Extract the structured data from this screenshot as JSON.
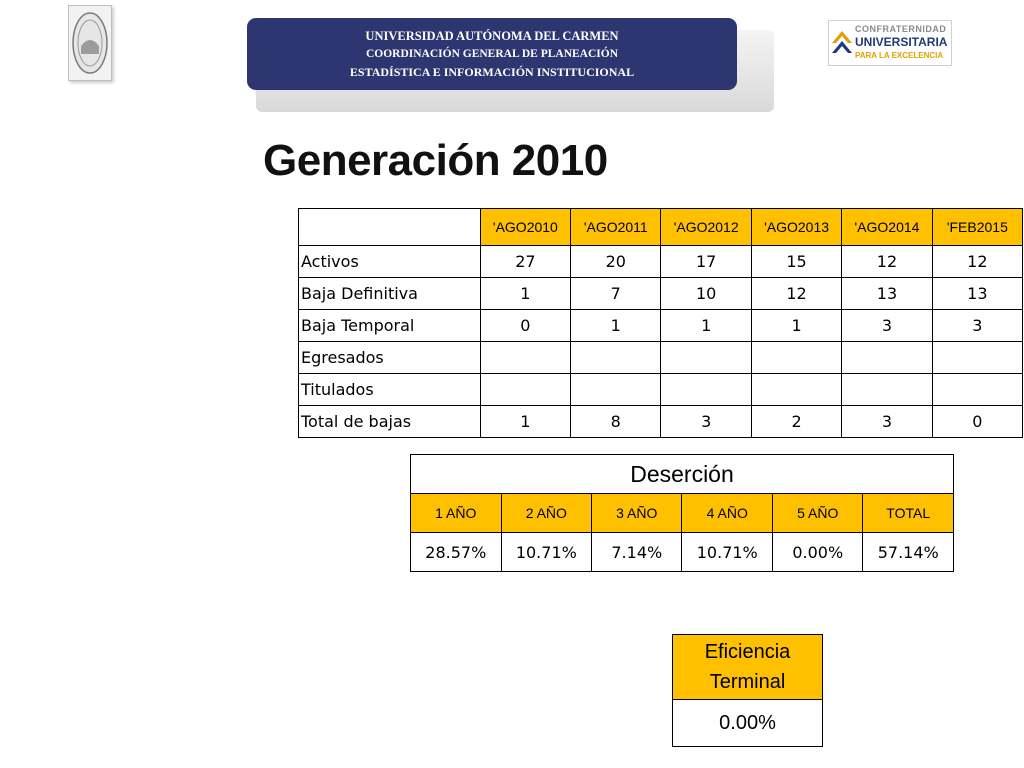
{
  "header": {
    "banner": {
      "line1": "UNIVERSIDAD AUTÓNOMA DEL CARMEN",
      "line2": "COORDINACIÓN GENERAL DE PLANEACIÓN",
      "line3": "ESTADÍSTICA E INFORMACIÓN INSTITUCIONAL"
    },
    "right_logo": {
      "line1": "CONFRATERNIDAD",
      "line2": "UNIVERSITARIA",
      "line3": "PARA LA EXCELENCIA"
    },
    "accent_color": "#2e3672"
  },
  "title": "Generación 2010",
  "main_table": {
    "columns": [
      "'AGO2010",
      "'AGO2011",
      "'AGO2012",
      "'AGO2013",
      "'AGO2014",
      "'FEB2015"
    ],
    "rows": [
      {
        "label": "Activos",
        "values": [
          "27",
          "20",
          "17",
          "15",
          "12",
          "12"
        ]
      },
      {
        "label": "Baja Definitiva",
        "values": [
          "1",
          "7",
          "10",
          "12",
          "13",
          "13"
        ]
      },
      {
        "label": "Baja Temporal",
        "values": [
          "0",
          "1",
          "1",
          "1",
          "3",
          "3"
        ]
      },
      {
        "label": "Egresados",
        "values": [
          "",
          "",
          "",
          "",
          "",
          ""
        ]
      },
      {
        "label": "Titulados",
        "values": [
          "",
          "",
          "",
          "",
          "",
          ""
        ]
      },
      {
        "label": "Total de bajas",
        "values": [
          "1",
          "8",
          "3",
          "2",
          "3",
          "0"
        ]
      }
    ],
    "header_color": "#ffc000"
  },
  "desercion": {
    "caption": "Deserción",
    "columns": [
      "1 AÑO",
      "2 AÑO",
      "3 AÑO",
      "4 AÑO",
      "5 AÑO",
      "TOTAL"
    ],
    "values": [
      "28.57%",
      "10.71%",
      "7.14%",
      "10.71%",
      "0.00%",
      "57.14%"
    ]
  },
  "eficiencia": {
    "label_line1": "Eficiencia",
    "label_line2": "Terminal",
    "value": "0.00%"
  }
}
